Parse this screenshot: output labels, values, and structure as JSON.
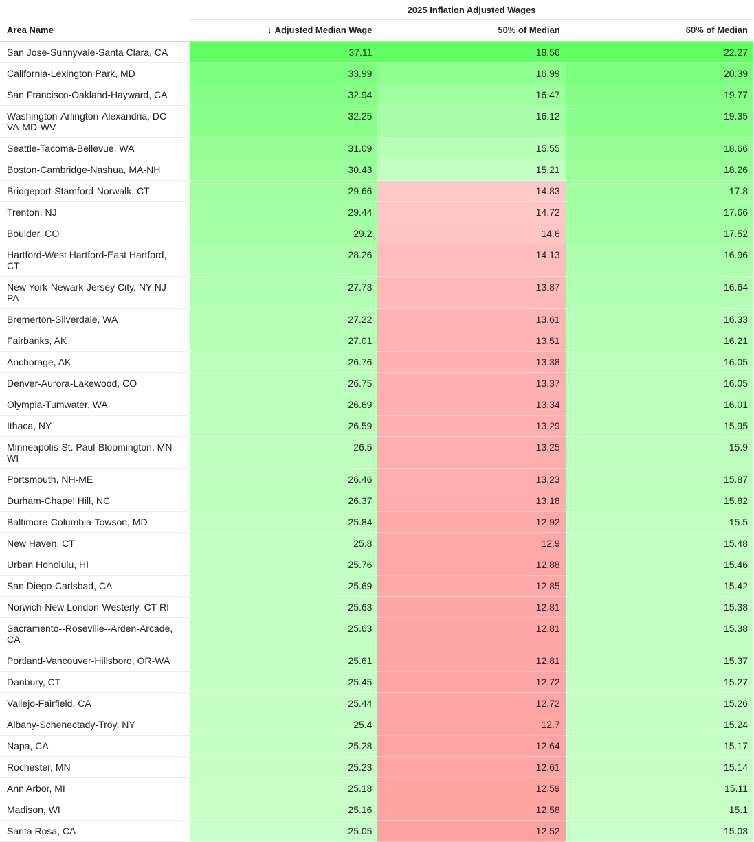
{
  "chart_data": {
    "type": "table",
    "title": "2025 Inflation Adjusted Wages",
    "columns": [
      {
        "key": "area",
        "label": "Area Name"
      },
      {
        "key": "median",
        "label": "Adjusted Median Wage",
        "sort_indicator": "↓"
      },
      {
        "key": "half",
        "label": "50% of Median"
      },
      {
        "key": "sixty",
        "label": "60% of Median"
      }
    ],
    "colors": {
      "green_high": "#62ff62",
      "green_low": "#c8ffc8",
      "red_light": "#ffcccc",
      "red_dark": "#ffa2a2"
    },
    "color_scales": {
      "median": {
        "type": "green",
        "low": 25.05,
        "high": 37.11
      },
      "sixty": {
        "type": "green",
        "low": 15.03,
        "high": 22.27
      },
      "half": {
        "type": "green-red",
        "threshold": 15.0,
        "low": 12.52,
        "high": 18.56
      }
    },
    "rows": [
      {
        "area": "San Jose-Sunnyvale-Santa Clara, CA",
        "median": 37.11,
        "half": 18.56,
        "sixty": 22.27
      },
      {
        "area": "California-Lexington Park, MD",
        "median": 33.99,
        "half": 16.99,
        "sixty": 20.39
      },
      {
        "area": "San Francisco-Oakland-Hayward, CA",
        "median": 32.94,
        "half": 16.47,
        "sixty": 19.77
      },
      {
        "area": "Washington-Arlington-Alexandria, DC-VA-MD-WV",
        "median": 32.25,
        "half": 16.12,
        "sixty": 19.35
      },
      {
        "area": "Seattle-Tacoma-Bellevue, WA",
        "median": 31.09,
        "half": 15.55,
        "sixty": 18.66
      },
      {
        "area": "Boston-Cambridge-Nashua, MA-NH",
        "median": 30.43,
        "half": 15.21,
        "sixty": 18.26
      },
      {
        "area": "Bridgeport-Stamford-Norwalk, CT",
        "median": 29.66,
        "half": 14.83,
        "sixty": 17.8
      },
      {
        "area": "Trenton, NJ",
        "median": 29.44,
        "half": 14.72,
        "sixty": 17.66
      },
      {
        "area": "Boulder, CO",
        "median": 29.2,
        "half": 14.6,
        "sixty": 17.52
      },
      {
        "area": "Hartford-West Hartford-East Hartford, CT",
        "median": 28.26,
        "half": 14.13,
        "sixty": 16.96
      },
      {
        "area": "New York-Newark-Jersey City, NY-NJ-PA",
        "median": 27.73,
        "half": 13.87,
        "sixty": 16.64
      },
      {
        "area": "Bremerton-Silverdale, WA",
        "median": 27.22,
        "half": 13.61,
        "sixty": 16.33
      },
      {
        "area": "Fairbanks, AK",
        "median": 27.01,
        "half": 13.51,
        "sixty": 16.21
      },
      {
        "area": "Anchorage, AK",
        "median": 26.76,
        "half": 13.38,
        "sixty": 16.05
      },
      {
        "area": "Denver-Aurora-Lakewood, CO",
        "median": 26.75,
        "half": 13.37,
        "sixty": 16.05
      },
      {
        "area": "Olympia-Tumwater, WA",
        "median": 26.69,
        "half": 13.34,
        "sixty": 16.01
      },
      {
        "area": "Ithaca, NY",
        "median": 26.59,
        "half": 13.29,
        "sixty": 15.95
      },
      {
        "area": "Minneapolis-St. Paul-Bloomington, MN-WI",
        "median": 26.5,
        "half": 13.25,
        "sixty": 15.9
      },
      {
        "area": "Portsmouth, NH-ME",
        "median": 26.46,
        "half": 13.23,
        "sixty": 15.87
      },
      {
        "area": "Durham-Chapel Hill, NC",
        "median": 26.37,
        "half": 13.18,
        "sixty": 15.82
      },
      {
        "area": "Baltimore-Columbia-Towson, MD",
        "median": 25.84,
        "half": 12.92,
        "sixty": 15.5
      },
      {
        "area": "New Haven, CT",
        "median": 25.8,
        "half": 12.9,
        "sixty": 15.48
      },
      {
        "area": "Urban Honolulu, HI",
        "median": 25.76,
        "half": 12.88,
        "sixty": 15.46
      },
      {
        "area": "San Diego-Carlsbad, CA",
        "median": 25.69,
        "half": 12.85,
        "sixty": 15.42
      },
      {
        "area": "Norwich-New London-Westerly, CT-RI",
        "median": 25.63,
        "half": 12.81,
        "sixty": 15.38
      },
      {
        "area": "Sacramento--Roseville--Arden-Arcade, CA",
        "median": 25.63,
        "half": 12.81,
        "sixty": 15.38
      },
      {
        "area": "Portland-Vancouver-Hillsboro, OR-WA",
        "median": 25.61,
        "half": 12.81,
        "sixty": 15.37
      },
      {
        "area": "Danbury, CT",
        "median": 25.45,
        "half": 12.72,
        "sixty": 15.27
      },
      {
        "area": "Vallejo-Fairfield, CA",
        "median": 25.44,
        "half": 12.72,
        "sixty": 15.26
      },
      {
        "area": "Albany-Schenectady-Troy, NY",
        "median": 25.4,
        "half": 12.7,
        "sixty": 15.24
      },
      {
        "area": "Napa, CA",
        "median": 25.28,
        "half": 12.64,
        "sixty": 15.17
      },
      {
        "area": "Rochester, MN",
        "median": 25.23,
        "half": 12.61,
        "sixty": 15.14
      },
      {
        "area": "Ann Arbor, MI",
        "median": 25.18,
        "half": 12.59,
        "sixty": 15.11
      },
      {
        "area": "Madison, WI",
        "median": 25.16,
        "half": 12.58,
        "sixty": 15.1
      },
      {
        "area": "Santa Rosa, CA",
        "median": 25.05,
        "half": 12.52,
        "sixty": 15.03
      }
    ]
  }
}
